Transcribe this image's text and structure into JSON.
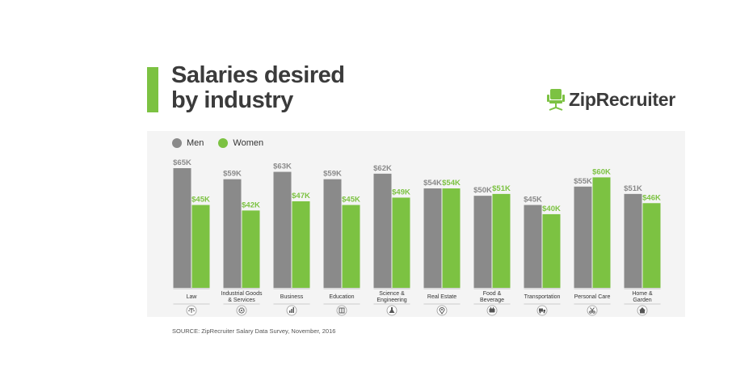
{
  "title_lines": [
    "Salaries desired",
    "by industry"
  ],
  "logo": {
    "text": "ZipRecruiter",
    "icon": "office-chair-icon"
  },
  "source": "SOURCE: ZipRecruiter Salary Data Survey, November, 2016",
  "colors": {
    "men": "#8a8a8a",
    "women": "#7cc242",
    "accent": "#7cc242"
  },
  "chart_data": {
    "type": "bar",
    "title": "Salaries desired by industry",
    "legend_position": "top-left",
    "ylim": [
      0,
      65
    ],
    "categories": [
      {
        "label": [
          "Law"
        ],
        "icon": "scales-icon"
      },
      {
        "label": [
          "Industrial Goods",
          "& Services"
        ],
        "icon": "gear-icon"
      },
      {
        "label": [
          "Business"
        ],
        "icon": "bar-chart-icon"
      },
      {
        "label": [
          "Education"
        ],
        "icon": "book-icon"
      },
      {
        "label": [
          "Science &",
          "Engineering"
        ],
        "icon": "flask-icon"
      },
      {
        "label": [
          "Real Estate"
        ],
        "icon": "location-pin-icon"
      },
      {
        "label": [
          "Food &",
          "Beverage"
        ],
        "icon": "food-icon"
      },
      {
        "label": [
          "Transportation"
        ],
        "icon": "truck-icon"
      },
      {
        "label": [
          "Personal Care"
        ],
        "icon": "scissors-icon"
      },
      {
        "label": [
          "Home &",
          "Garden"
        ],
        "icon": "house-icon"
      }
    ],
    "series": [
      {
        "name": "Men",
        "values": [
          65,
          59,
          63,
          59,
          62,
          54,
          50,
          45,
          55,
          51
        ],
        "labels": [
          "$65K",
          "$59K",
          "$63K",
          "$59K",
          "$62K",
          "$54K",
          "$50K",
          "$45K",
          "$55K",
          "$51K"
        ]
      },
      {
        "name": "Women",
        "values": [
          45,
          42,
          47,
          45,
          49,
          54,
          51,
          40,
          60,
          46
        ],
        "labels": [
          "$45K",
          "$42K",
          "$47K",
          "$45K",
          "$49K",
          "$54K",
          "$51K",
          "$40K",
          "$60K",
          "$46K"
        ]
      }
    ]
  }
}
